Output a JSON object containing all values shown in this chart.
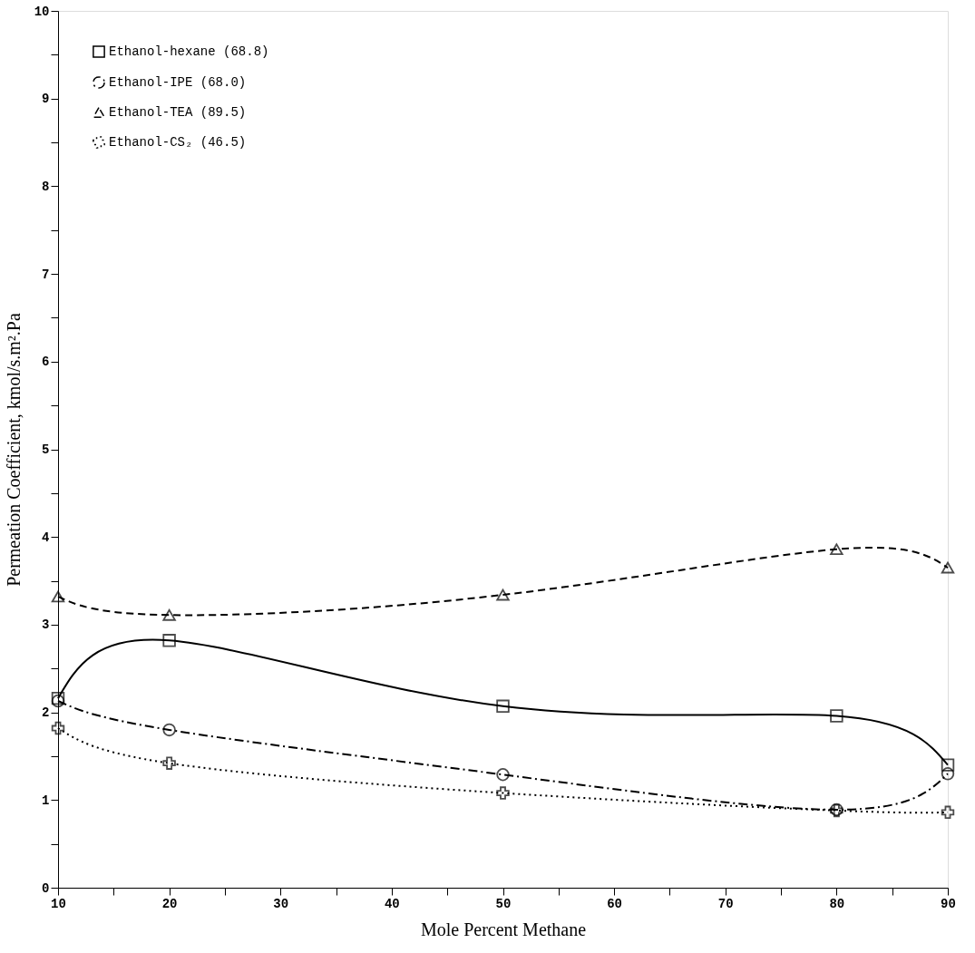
{
  "chart_data": {
    "type": "line",
    "xlabel": "Mole Percent Methane",
    "ylabel": "Permeation Coefficient, kmol/s.m².Pa",
    "x": [
      10,
      20,
      50,
      80,
      90
    ],
    "series": [
      {
        "name": "Ethanol-hexane (68.8)",
        "color": "#000000",
        "marker": "square",
        "line_style": "solid",
        "values": [
          2.16,
          2.82,
          2.07,
          1.96,
          1.4
        ]
      },
      {
        "name": "Ethanol-IPE (68.0)",
        "color": "#000000",
        "marker": "circle",
        "line_style": "dashdot",
        "values": [
          2.13,
          1.8,
          1.29,
          0.89,
          1.3
        ]
      },
      {
        "name": "Ethanol-TEA (89.5)",
        "color": "#000000",
        "marker": "triangle",
        "line_style": "dashed",
        "values": [
          3.32,
          3.11,
          3.34,
          3.86,
          3.65
        ]
      },
      {
        "name": "Ethanol-CS₂ (46.5)",
        "color": "#000000",
        "marker": "cross",
        "line_style": "dotted",
        "values": [
          1.82,
          1.42,
          1.08,
          0.88,
          0.86
        ]
      }
    ],
    "xlim": [
      10,
      90
    ],
    "xticks": [
      10,
      {
        "value": 15,
        "label": null
      },
      20,
      {
        "value": 25,
        "label": null
      },
      30,
      {
        "value": 35,
        "label": null
      },
      40,
      {
        "value": 45,
        "label": null
      },
      50,
      {
        "value": 55,
        "label": null
      },
      60,
      {
        "value": 65,
        "label": null
      },
      70,
      {
        "value": 75,
        "label": null
      },
      80,
      {
        "value": 85,
        "label": null
      },
      90
    ],
    "ylim": [
      0,
      10
    ],
    "yticks": [
      0,
      {
        "value": 0.5,
        "label": null
      },
      1,
      {
        "value": 1.5,
        "label": null
      },
      2,
      {
        "value": 2.5,
        "label": null
      },
      3,
      {
        "value": 3.5,
        "label": null
      },
      4,
      {
        "value": 4.5,
        "label": null
      },
      5,
      {
        "value": 5.5,
        "label": null
      },
      6,
      {
        "value": 6.5,
        "label": null
      },
      7,
      {
        "value": 7.5,
        "label": null
      },
      8,
      {
        "value": 8.5,
        "label": null
      },
      9,
      {
        "value": 9.5,
        "label": null
      },
      10
    ],
    "grid": false,
    "legend": "top left"
  }
}
